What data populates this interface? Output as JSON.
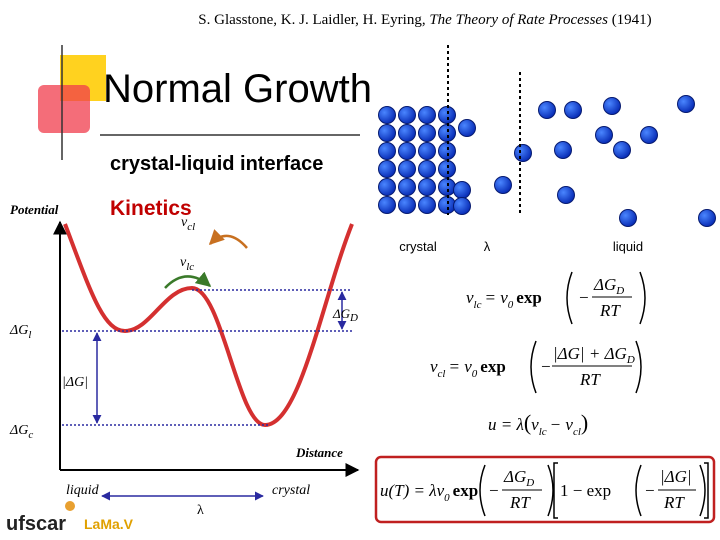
{
  "citation": {
    "authors": "S. Glasstone, K. J. Laidler, H. Eyring,",
    "book": "The Theory of Rate Processes",
    "year": "(1941)"
  },
  "title": "Normal Growth",
  "subtitle": "crystal-liquid interface",
  "heading": "Kinetics",
  "diagram": {
    "y_axis": "Potential",
    "x_axis": "Distance",
    "v_cl": {
      "base": "v",
      "sub": "cl"
    },
    "v_lc": {
      "base": "v",
      "sub": "lc"
    },
    "dG_D": {
      "base": "ΔG",
      "sub": "D"
    },
    "dG_l": {
      "base": "ΔG",
      "sub": "l"
    },
    "dG_abs": "|ΔG|",
    "dG_c": {
      "base": "ΔG",
      "sub": "c"
    },
    "left_phase": "liquid",
    "right_phase": "crystal",
    "lambda": "λ"
  },
  "atoms": {
    "crystal": "crystal",
    "lambda": "λ",
    "liquid": "liquid"
  },
  "equations": [
    {
      "v": "v",
      "sub": "lc",
      "eq": "= v",
      "zero": "0",
      "exp": "exp",
      "minus": "−",
      "num": "ΔG",
      "num_sub": "D",
      "den": "RT"
    },
    {
      "v": "v",
      "sub": "cl",
      "eq": "= v",
      "zero": "0",
      "exp": "exp",
      "minus": "−",
      "num": "|ΔG| + ΔG",
      "num_sub": "D",
      "den": "RT"
    },
    {
      "lhs": "u = λ",
      "open": "(",
      "v1": "v",
      "sub1": "lc",
      "minus": "− v",
      "sub2": "cl",
      "close": ")"
    },
    {
      "lhs": "u(T) = λv",
      "zero": "0",
      "exp": "exp",
      "minus": "−",
      "num": "ΔG",
      "num_sub": "D",
      "den": "RT",
      "one": "1 − exp",
      "minus2": "−",
      "num2": "|ΔG|",
      "den2": "RT"
    }
  ],
  "logo": {
    "name": "ufscar",
    "lab": "LaMa.V"
  }
}
